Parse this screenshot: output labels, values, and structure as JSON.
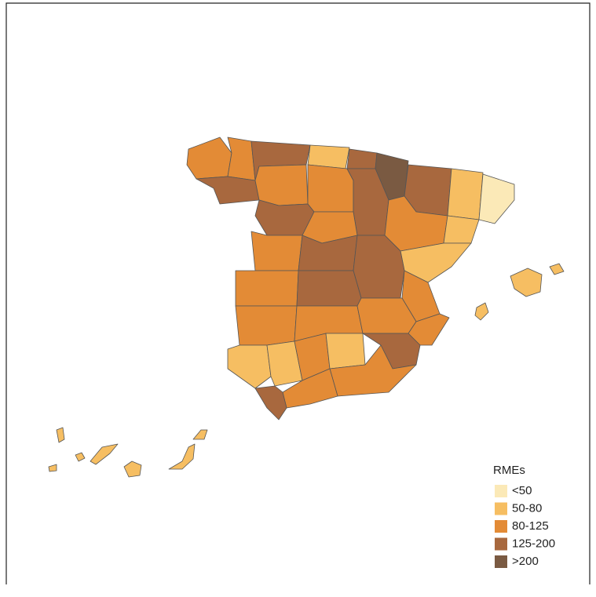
{
  "legend": {
    "title": "RMEs",
    "items": [
      {
        "label": "<50",
        "color": "#fbe9b7"
      },
      {
        "label": "50-80",
        "color": "#f6be62"
      },
      {
        "label": "80-125",
        "color": "#e38b36"
      },
      {
        "label": "125-200",
        "color": "#a8683e"
      },
      {
        "label": ">200",
        "color": "#7a5a42"
      }
    ]
  }
}
